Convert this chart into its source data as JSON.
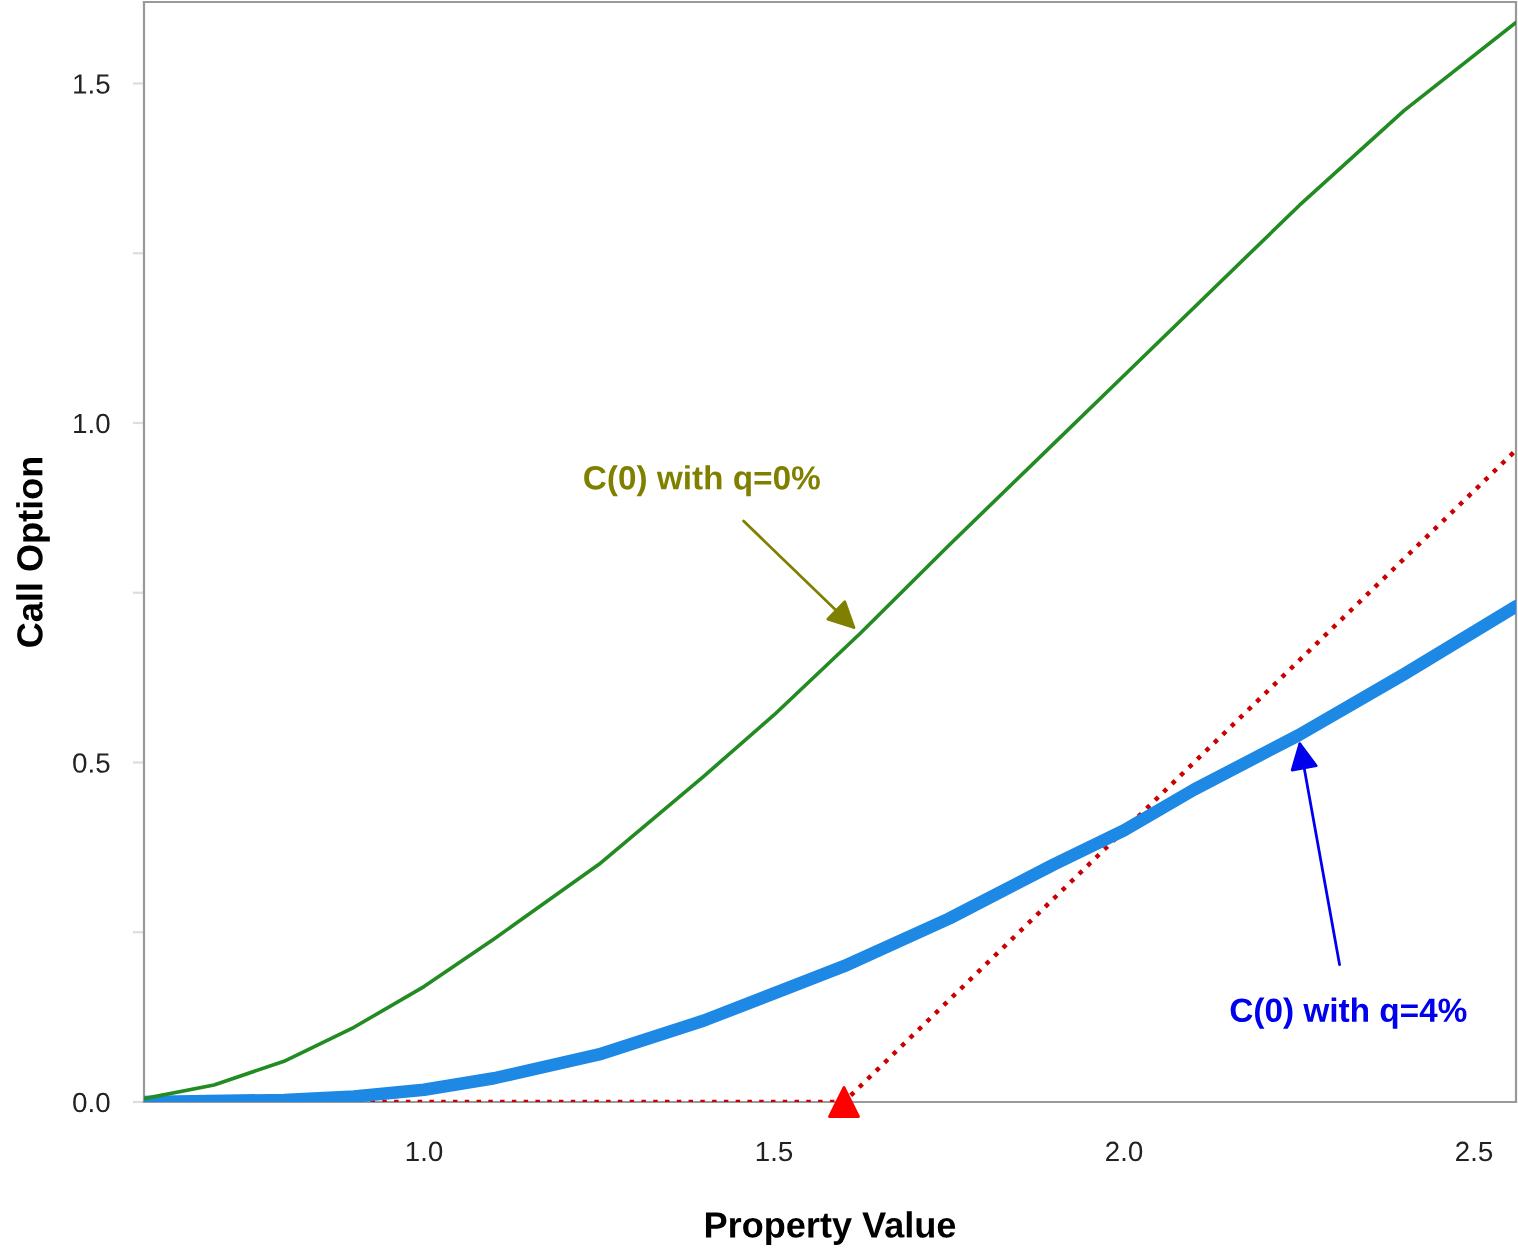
{
  "chart_data": {
    "type": "line",
    "xlabel": "Property Value",
    "ylabel": "Call Option",
    "xlim": [
      0.6,
      2.56
    ],
    "xticks": [
      {
        "value": 1,
        "label": "1.0"
      },
      1.5,
      {
        "value": 2,
        "label": "2.0"
      },
      2.5
    ],
    "ylim": [
      0,
      1.62
    ],
    "yticks": [
      {
        "value": 0,
        "label": "0.0"
      },
      {
        "value": 0.25,
        "label": null
      },
      0.5,
      {
        "value": 0.75,
        "label": null
      },
      {
        "value": 1,
        "label": "1.0"
      },
      {
        "value": 1.25,
        "label": null
      },
      1.5
    ],
    "grid": false,
    "legend": false,
    "series": [
      {
        "color": "#228b22",
        "x": [
          0.6,
          0.7,
          0.8,
          0.9,
          1.0,
          1.1,
          1.25,
          1.4,
          1.5,
          1.623,
          1.75,
          1.9,
          2.0,
          2.25,
          2.4,
          2.56
        ],
        "values": [
          0.005,
          0.025,
          0.06,
          0.11,
          0.17,
          0.24,
          0.35,
          0.48,
          0.57,
          0.69,
          0.82,
          0.97,
          1.07,
          1.32,
          1.46,
          1.59
        ]
      },
      {
        "color": "#1e88e5",
        "x": [
          0.6,
          0.8,
          0.9,
          1.0,
          1.1,
          1.25,
          1.4,
          1.5,
          1.6,
          1.75,
          1.9,
          2.0,
          2.1,
          2.249,
          2.4,
          2.56
        ],
        "values": [
          0.0,
          0.003,
          0.008,
          0.018,
          0.035,
          0.07,
          0.12,
          0.16,
          0.2,
          0.27,
          0.35,
          0.4,
          0.46,
          0.54,
          0.63,
          0.73
        ]
      },
      {
        "color": "#cc0000",
        "line_style": "dotted",
        "x": [
          0.89,
          1.6,
          2.56
        ],
        "values": [
          0.0,
          0.0,
          0.96
        ]
      },
      {
        "type": "scatter",
        "marker": "triangle",
        "color": "#ff0000",
        "x": [
          1.6
        ],
        "values": [
          0.0
        ]
      }
    ],
    "annotations": [
      {
        "text": "C(0) with q=0%",
        "x": 1.623,
        "y": 0.69
      },
      {
        "text": "C(0) with q=4%",
        "x": 2.249,
        "y": 0.54
      }
    ]
  }
}
